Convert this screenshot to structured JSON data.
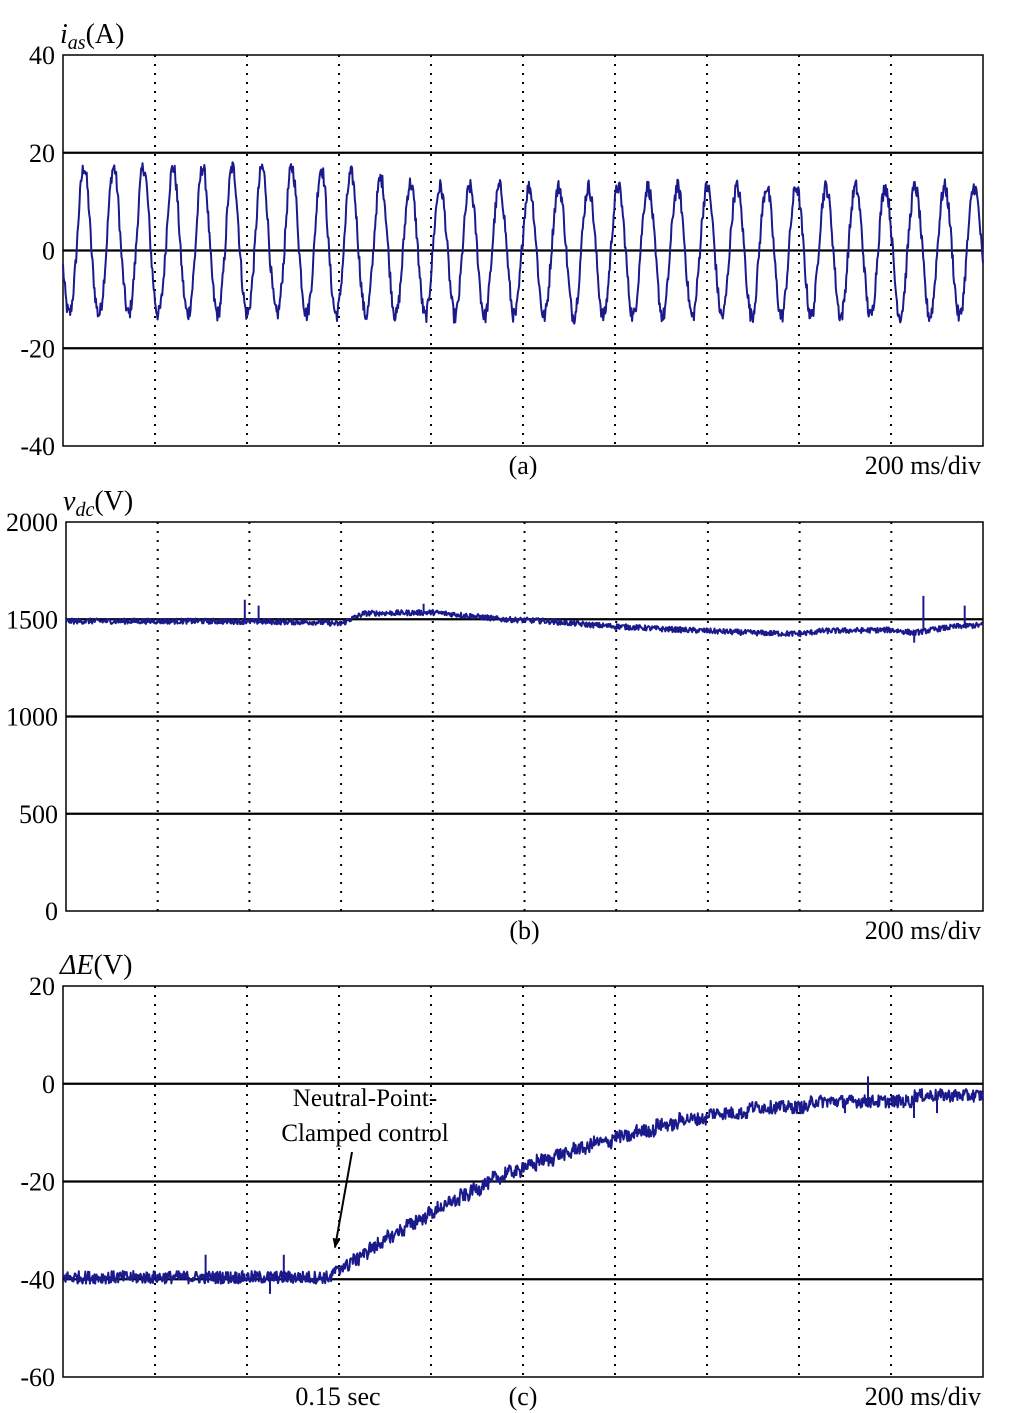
{
  "chart_data": [
    {
      "id": "a",
      "type": "line",
      "ylabel_main": "i",
      "ylabel_sub": "as",
      "ylabel_unit": "(A)",
      "yticks": [
        40,
        20,
        0,
        -20,
        -40
      ],
      "yticks_text": [
        "40",
        "20",
        "0",
        "-20",
        "-40"
      ],
      "ylim": [
        -40,
        40
      ],
      "xlim": [
        0,
        2.0
      ],
      "xdivisions": 10,
      "grid": {
        "horizontal_solid": true,
        "vertical_dotted": true
      },
      "panel_label": "(a)",
      "timebase": "200 ms/div",
      "series": [
        {
          "color": "#1a1a8c",
          "description_values": {
            "waveform": "sine",
            "frequency_hz": 15.5,
            "start_phase_deg": 195,
            "positive_peak_before": 17,
            "negative_peak_before": -13,
            "positive_peak_after": 13,
            "negative_peak_after": -13.5,
            "transition_time_s": 0.65,
            "noise_amplitude": 1.6
          }
        }
      ]
    },
    {
      "id": "b",
      "type": "line",
      "ylabel_main": "v",
      "ylabel_sub": "dc",
      "ylabel_unit": "(V)",
      "yticks": [
        2000,
        1500,
        1000,
        500,
        0
      ],
      "yticks_text": [
        "2000",
        "1500",
        "1000",
        "500",
        "0"
      ],
      "ylim": [
        0,
        2000
      ],
      "xlim": [
        0,
        2.0
      ],
      "xdivisions": 10,
      "grid": {
        "horizontal_solid": true,
        "vertical_dotted": true
      },
      "panel_label": "(b)",
      "timebase": "200 ms/div",
      "series": [
        {
          "color": "#1a1a8c",
          "points": [
            [
              0.0,
              1490
            ],
            [
              0.3,
              1490
            ],
            [
              0.55,
              1485
            ],
            [
              0.6,
              1475
            ],
            [
              0.62,
              1500
            ],
            [
              0.65,
              1530
            ],
            [
              0.8,
              1535
            ],
            [
              0.85,
              1525
            ],
            [
              0.95,
              1500
            ],
            [
              1.05,
              1490
            ],
            [
              1.15,
              1470
            ],
            [
              1.3,
              1450
            ],
            [
              1.5,
              1430
            ],
            [
              1.6,
              1425
            ],
            [
              1.65,
              1440
            ],
            [
              1.8,
              1445
            ],
            [
              1.85,
              1430
            ],
            [
              1.9,
              1450
            ],
            [
              1.95,
              1465
            ],
            [
              2.0,
              1470
            ]
          ],
          "spikes": [
            [
              0.39,
              1600
            ],
            [
              0.42,
              1570
            ],
            [
              0.78,
              1580
            ],
            [
              1.85,
              1380
            ],
            [
              1.87,
              1620
            ],
            [
              1.96,
              1570
            ]
          ],
          "noise_amplitude": 14
        }
      ]
    },
    {
      "id": "c",
      "type": "line",
      "ylabel_main": "ΔE",
      "ylabel_sub": "",
      "ylabel_unit": "(V)",
      "yticks": [
        20,
        0,
        -20,
        -40,
        -60
      ],
      "yticks_text": [
        "20",
        "0",
        "-20",
        "-40",
        "-60"
      ],
      "ylim": [
        -60,
        20
      ],
      "xlim": [
        0,
        2.0
      ],
      "xdivisions": 10,
      "grid": {
        "horizontal_solid": true,
        "vertical_dotted": true
      },
      "panel_label": "(c)",
      "timebase": "200 ms/div",
      "x_annotation": {
        "text": "0.15 sec",
        "x": 0.6
      },
      "annotation": {
        "text_lines": [
          "Neutral-Point-",
          "Clamped control"
        ],
        "arrow_target": [
          0.6,
          -38
        ]
      },
      "series": [
        {
          "color": "#1a1a8c",
          "points": [
            [
              0.0,
              -39.5
            ],
            [
              0.58,
              -39.5
            ],
            [
              0.6,
              -38
            ],
            [
              0.65,
              -35
            ],
            [
              0.75,
              -29
            ],
            [
              0.85,
              -24
            ],
            [
              0.95,
              -19
            ],
            [
              1.05,
              -15.5
            ],
            [
              1.15,
              -12.5
            ],
            [
              1.25,
              -10
            ],
            [
              1.35,
              -7.5
            ],
            [
              1.45,
              -5.8
            ],
            [
              1.55,
              -4.8
            ],
            [
              1.65,
              -4
            ],
            [
              1.75,
              -3.5
            ],
            [
              1.85,
              -3
            ],
            [
              1.95,
              -2.8
            ],
            [
              2.0,
              -2.8
            ]
          ],
          "spikes": [
            [
              0.31,
              -35
            ],
            [
              0.45,
              -43
            ],
            [
              0.48,
              -35
            ],
            [
              1.0,
              -16
            ],
            [
              1.75,
              1.5
            ],
            [
              1.7,
              -6
            ],
            [
              1.85,
              -7
            ],
            [
              1.9,
              -6
            ]
          ],
          "noise_amplitude": 1.3
        }
      ]
    }
  ]
}
